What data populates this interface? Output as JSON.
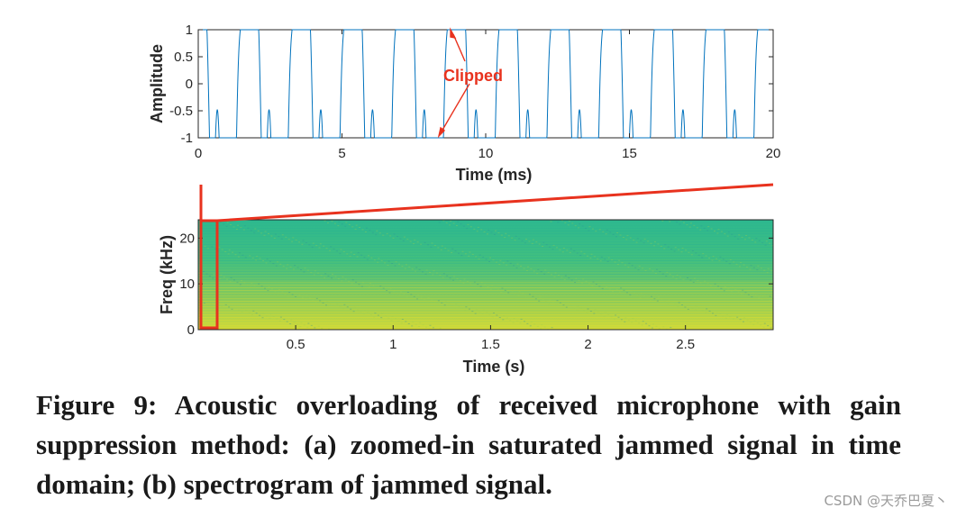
{
  "chart_data": [
    {
      "type": "line",
      "xlabel": "Time (ms)",
      "ylabel": "Amplitude",
      "xlim": [
        0,
        20
      ],
      "ylim": [
        -1,
        1
      ],
      "xticks": [
        "0",
        "5",
        "10",
        "15",
        "20"
      ],
      "yticks": [
        "1",
        "0.5",
        "0",
        "-0.5",
        "-1"
      ],
      "series_color": "#0072bd",
      "period_ms": 1.8,
      "annotation": "Clipped",
      "annotation_color": "#e8321e"
    },
    {
      "type": "heatmap",
      "xlabel": "Time (s)",
      "ylabel": "Freq (kHz)",
      "xlim": [
        0,
        2.95
      ],
      "ylim": [
        0,
        24
      ],
      "xticks": [
        "0.5",
        "1",
        "1.5",
        "2",
        "2.5"
      ],
      "yticks": [
        "20",
        "10",
        "0"
      ],
      "zoom_box_time_s": [
        0,
        0.08
      ],
      "highlight_color": "#e8321e"
    }
  ],
  "caption": "Figure 9: Acoustic overloading of received microphone with gain suppression method: (a) zoomed-in saturated jammed signal in time domain; (b) spectrogram of jammed signal.",
  "watermark": "CSDN @天乔巴夏丶"
}
